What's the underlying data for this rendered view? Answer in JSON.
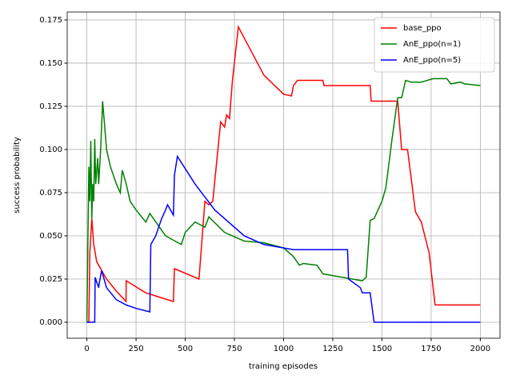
{
  "chart_data": {
    "type": "line",
    "xlabel": "training episodes",
    "ylabel": "success probability",
    "xlim": [
      -100,
      2100
    ],
    "ylim": [
      -0.00926,
      0.1796
    ],
    "xticks": [
      0,
      250,
      500,
      750,
      1000,
      1250,
      1500,
      1750,
      2000
    ],
    "yticks": [
      {
        "value": 0,
        "label": "0.000"
      },
      {
        "value": 0.025,
        "label": "0.025"
      },
      {
        "value": 0.05,
        "label": "0.050"
      },
      {
        "value": 0.075,
        "label": "0.075"
      },
      {
        "value": 0.1,
        "label": "0.100"
      },
      {
        "value": 0.125,
        "label": "0.125"
      },
      {
        "value": 0.15,
        "label": "0.150"
      },
      {
        "value": 0.175,
        "label": "0.175"
      }
    ],
    "grid": true,
    "legend": "upper right",
    "series": [
      {
        "name": "base_ppo",
        "color": "#ff0000",
        "x": [
          0,
          10,
          15,
          25,
          35,
          50,
          100,
          150,
          199,
          200,
          300,
          440,
          445,
          570,
          600,
          620,
          640,
          680,
          700,
          710,
          725,
          740,
          770,
          900,
          1000,
          1040,
          1050,
          1070,
          1200,
          1205,
          1440,
          1445,
          1580,
          1600,
          1630,
          1670,
          1700,
          1740,
          1770,
          2000
        ],
        "values": [
          0,
          0,
          0.04,
          0.06,
          0.045,
          0.035,
          0.025,
          0.018,
          0.012,
          0.024,
          0.017,
          0.012,
          0.031,
          0.025,
          0.07,
          0.068,
          0.07,
          0.116,
          0.113,
          0.12,
          0.118,
          0.14,
          0.171,
          0.143,
          0.132,
          0.131,
          0.137,
          0.14,
          0.14,
          0.137,
          0.137,
          0.128,
          0.128,
          0.1,
          0.1,
          0.064,
          0.058,
          0.04,
          0.01,
          0.01
        ]
      },
      {
        "name": "AnE_ppo(n=1)",
        "color": "#008000",
        "x": [
          0,
          10,
          15,
          20,
          25,
          30,
          35,
          40,
          45,
          55,
          60,
          70,
          80,
          100,
          120,
          150,
          170,
          180,
          200,
          220,
          250,
          300,
          320,
          400,
          480,
          500,
          550,
          600,
          620,
          700,
          800,
          900,
          1000,
          1050,
          1080,
          1100,
          1170,
          1200,
          1300,
          1400,
          1420,
          1440,
          1460,
          1500,
          1520,
          1550,
          1580,
          1600,
          1620,
          1650,
          1700,
          1760,
          1830,
          1850,
          1900,
          1920,
          2000
        ],
        "values": [
          0,
          0.09,
          0.07,
          0.105,
          0.06,
          0.08,
          0.07,
          0.106,
          0.08,
          0.095,
          0.08,
          0.1,
          0.128,
          0.1,
          0.09,
          0.08,
          0.075,
          0.088,
          0.08,
          0.07,
          0.065,
          0.058,
          0.063,
          0.05,
          0.045,
          0.052,
          0.058,
          0.055,
          0.061,
          0.052,
          0.047,
          0.046,
          0.043,
          0.038,
          0.033,
          0.034,
          0.033,
          0.028,
          0.026,
          0.024,
          0.026,
          0.059,
          0.06,
          0.07,
          0.078,
          0.105,
          0.13,
          0.13,
          0.14,
          0.139,
          0.139,
          0.141,
          0.141,
          0.138,
          0.139,
          0.138,
          0.137
        ]
      },
      {
        "name": "AnE_ppo(n=5)",
        "color": "#0000ff",
        "x": [
          0,
          40,
          42,
          60,
          62,
          75,
          100,
          150,
          200,
          250,
          320,
          325,
          350,
          380,
          400,
          410,
          440,
          445,
          460,
          550,
          650,
          800,
          900,
          1050,
          1325,
          1330,
          1390,
          1400,
          1440,
          1460,
          2000
        ],
        "values": [
          0,
          0,
          0.026,
          0.02,
          0.022,
          0.03,
          0.02,
          0.013,
          0.01,
          0.008,
          0.006,
          0.045,
          0.05,
          0.06,
          0.065,
          0.068,
          0.062,
          0.085,
          0.096,
          0.08,
          0.065,
          0.05,
          0.045,
          0.042,
          0.042,
          0.025,
          0.02,
          0.017,
          0.017,
          0,
          0
        ]
      }
    ]
  }
}
